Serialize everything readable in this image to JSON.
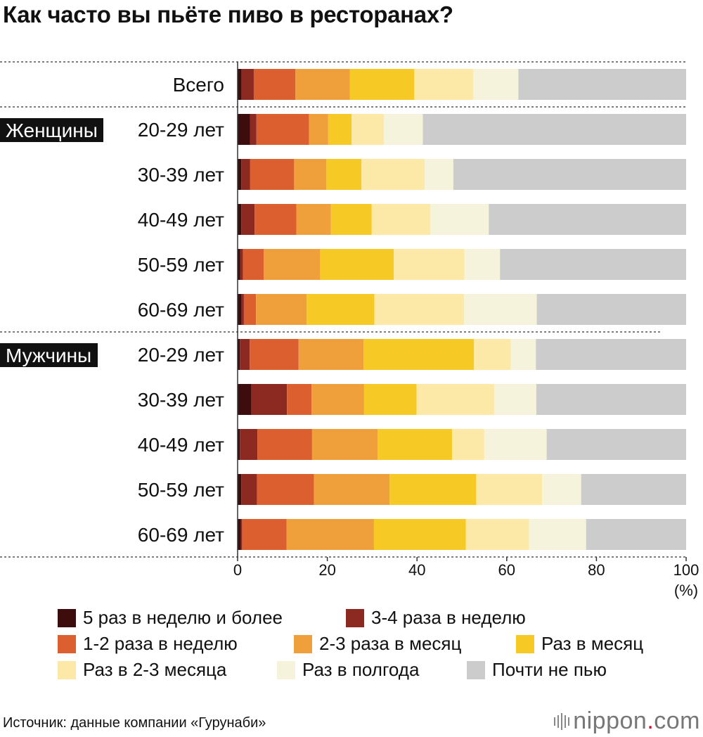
{
  "title": "Как часто вы пьёте пиво в ресторанах?",
  "source": "Источник: данные компании «Гурунаби»",
  "brand": {
    "name": "nippon",
    "dot": ".",
    "suffix": "com"
  },
  "colors": [
    "#3d0c0c",
    "#8c2a22",
    "#dc5f30",
    "#f0a03a",
    "#f7c924",
    "#fce9a8",
    "#f6f3dc",
    "#cccccc"
  ],
  "chart_data": {
    "type": "bar",
    "orientation": "horizontal",
    "stacked": true,
    "title": "Как часто вы пьёте пиво в ресторанах?",
    "xlim": [
      0,
      100
    ],
    "x_ticks": [
      "0",
      "20",
      "40",
      "60",
      "80",
      "100"
    ],
    "x_unit": "(%)",
    "legend_position": "bottom",
    "groups": [
      {
        "label": "",
        "start": 0,
        "end": 0
      },
      {
        "label": "Женщины",
        "start": 1,
        "end": 5
      },
      {
        "label": "Мужчины",
        "start": 6,
        "end": 10
      }
    ],
    "categories": [
      "Всего",
      "20-29 лет",
      "30-39 лет",
      "40-49 лет",
      "50-59 лет",
      "60-69 лет",
      "20-29 лет",
      "30-39 лет",
      "40-49 лет",
      "50-59 лет",
      "60-69 лет"
    ],
    "series": [
      {
        "name": "5 раз в неделю и более",
        "values": [
          0.9,
          2.8,
          0.8,
          0.8,
          0.6,
          0.9,
          0.5,
          3.1,
          0.5,
          0.8,
          0.7
        ]
      },
      {
        "name": "3-4 раза в неделю",
        "values": [
          2.7,
          1.4,
          2.0,
          3.0,
          0.6,
          0.5,
          2.2,
          7.9,
          3.9,
          3.5,
          0.3
        ]
      },
      {
        "name": "1-2 раза в неделю",
        "values": [
          9.3,
          11.7,
          9.8,
          9.3,
          4.6,
          2.7,
          10.9,
          5.5,
          12.2,
          12.7,
          9.9
        ]
      },
      {
        "name": "2-3 раза в месяц",
        "values": [
          12.1,
          4.3,
          7.2,
          7.7,
          12.6,
          11.3,
          14.5,
          11.7,
          14.6,
          16.9,
          19.5
        ]
      },
      {
        "name": "Раз в месяц",
        "values": [
          14.4,
          5.2,
          7.8,
          9.1,
          16.4,
          15.1,
          24.6,
          11.7,
          16.6,
          19.3,
          20.5
        ]
      },
      {
        "name": "Раз в 2-3 месяца",
        "values": [
          13.1,
          7.2,
          14.1,
          13.1,
          15.8,
          20.0,
          8.2,
          17.3,
          7.2,
          14.7,
          14.1
        ]
      },
      {
        "name": "Раз в полгода",
        "values": [
          10.1,
          8.7,
          6.4,
          13.0,
          7.9,
          16.2,
          5.6,
          9.4,
          13.9,
          8.7,
          12.7
        ]
      },
      {
        "name": "Почти не пью",
        "values": [
          37.4,
          58.7,
          51.9,
          44.0,
          41.5,
          33.3,
          33.5,
          33.4,
          31.1,
          23.4,
          22.3
        ]
      }
    ]
  }
}
